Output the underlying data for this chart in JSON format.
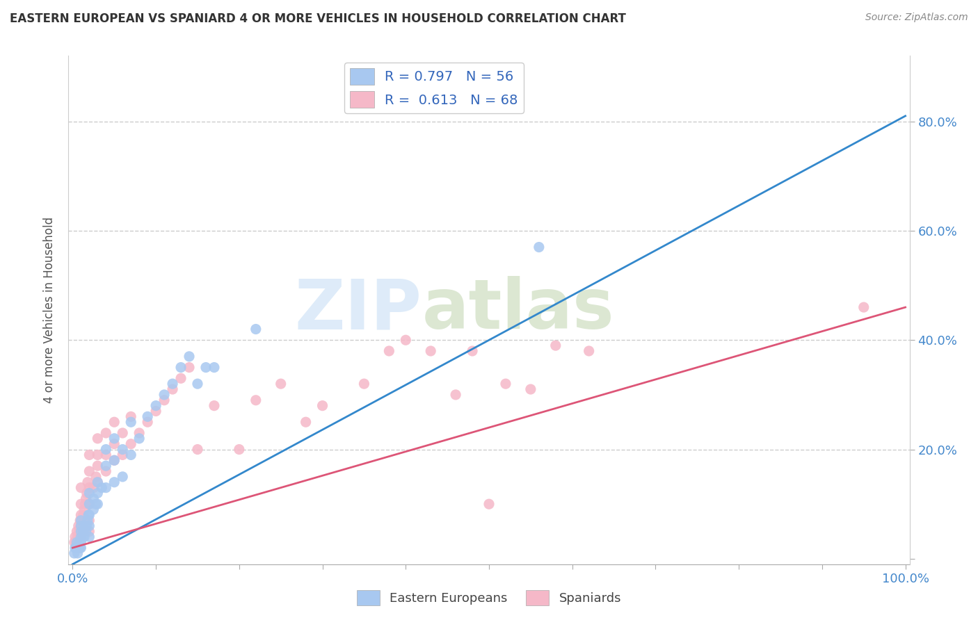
{
  "title": "EASTERN EUROPEAN VS SPANIARD 4 OR MORE VEHICLES IN HOUSEHOLD CORRELATION CHART",
  "source": "Source: ZipAtlas.com",
  "ylabel": "4 or more Vehicles in Household",
  "xlim": [
    -0.005,
    1.005
  ],
  "ylim": [
    -0.01,
    0.92
  ],
  "xticks": [
    0.0,
    0.1,
    0.2,
    0.3,
    0.4,
    0.5,
    0.6,
    0.7,
    0.8,
    0.9,
    1.0
  ],
  "xticklabels_show": {
    "0.0": "0.0%",
    "1.0": "100.0%"
  },
  "yticks": [
    0.0,
    0.2,
    0.4,
    0.6,
    0.8
  ],
  "yticklabels_right": [
    "",
    "20.0%",
    "40.0%",
    "60.0%",
    "80.0%"
  ],
  "legend_labels": [
    "Eastern Europeans",
    "Spaniards"
  ],
  "legend_R": [
    "0.797",
    "0.613"
  ],
  "legend_N": [
    "56",
    "68"
  ],
  "blue_color": "#a8c8f0",
  "pink_color": "#f5b8c8",
  "blue_line_color": "#3388cc",
  "pink_line_color": "#dd5577",
  "blue_line_slope": 0.82,
  "blue_line_intercept": -0.01,
  "pink_line_slope": 0.44,
  "pink_line_intercept": 0.02,
  "eastern_european_x": [
    0.002,
    0.003,
    0.004,
    0.005,
    0.006,
    0.007,
    0.008,
    0.009,
    0.01,
    0.01,
    0.01,
    0.01,
    0.01,
    0.01,
    0.012,
    0.013,
    0.014,
    0.015,
    0.016,
    0.017,
    0.018,
    0.019,
    0.02,
    0.02,
    0.02,
    0.02,
    0.02,
    0.025,
    0.025,
    0.028,
    0.03,
    0.03,
    0.03,
    0.035,
    0.04,
    0.04,
    0.04,
    0.05,
    0.05,
    0.05,
    0.06,
    0.06,
    0.07,
    0.07,
    0.08,
    0.09,
    0.1,
    0.11,
    0.12,
    0.13,
    0.14,
    0.15,
    0.16,
    0.17,
    0.22,
    0.56
  ],
  "eastern_european_y": [
    0.01,
    0.02,
    0.02,
    0.03,
    0.01,
    0.02,
    0.03,
    0.02,
    0.02,
    0.03,
    0.04,
    0.05,
    0.06,
    0.07,
    0.04,
    0.05,
    0.04,
    0.06,
    0.05,
    0.06,
    0.07,
    0.08,
    0.04,
    0.06,
    0.08,
    0.1,
    0.12,
    0.09,
    0.11,
    0.1,
    0.1,
    0.12,
    0.14,
    0.13,
    0.13,
    0.17,
    0.2,
    0.14,
    0.18,
    0.22,
    0.15,
    0.2,
    0.19,
    0.25,
    0.22,
    0.26,
    0.28,
    0.3,
    0.32,
    0.35,
    0.37,
    0.32,
    0.35,
    0.35,
    0.42,
    0.57
  ],
  "spaniard_x": [
    0.002,
    0.003,
    0.004,
    0.005,
    0.006,
    0.007,
    0.008,
    0.009,
    0.01,
    0.01,
    0.01,
    0.01,
    0.01,
    0.012,
    0.013,
    0.014,
    0.015,
    0.016,
    0.017,
    0.018,
    0.02,
    0.02,
    0.02,
    0.02,
    0.02,
    0.02,
    0.025,
    0.028,
    0.03,
    0.03,
    0.03,
    0.03,
    0.04,
    0.04,
    0.04,
    0.05,
    0.05,
    0.05,
    0.06,
    0.06,
    0.07,
    0.07,
    0.08,
    0.09,
    0.1,
    0.11,
    0.12,
    0.13,
    0.14,
    0.15,
    0.17,
    0.2,
    0.22,
    0.25,
    0.28,
    0.3,
    0.35,
    0.38,
    0.4,
    0.43,
    0.46,
    0.48,
    0.5,
    0.52,
    0.55,
    0.58,
    0.62,
    0.95
  ],
  "spaniard_y": [
    0.03,
    0.04,
    0.03,
    0.05,
    0.04,
    0.06,
    0.05,
    0.07,
    0.04,
    0.06,
    0.08,
    0.1,
    0.13,
    0.06,
    0.08,
    0.09,
    0.1,
    0.11,
    0.12,
    0.14,
    0.05,
    0.07,
    0.1,
    0.13,
    0.16,
    0.19,
    0.13,
    0.15,
    0.14,
    0.17,
    0.19,
    0.22,
    0.16,
    0.19,
    0.23,
    0.18,
    0.21,
    0.25,
    0.19,
    0.23,
    0.21,
    0.26,
    0.23,
    0.25,
    0.27,
    0.29,
    0.31,
    0.33,
    0.35,
    0.2,
    0.28,
    0.2,
    0.29,
    0.32,
    0.25,
    0.28,
    0.32,
    0.38,
    0.4,
    0.38,
    0.3,
    0.38,
    0.1,
    0.32,
    0.31,
    0.39,
    0.38,
    0.46
  ]
}
